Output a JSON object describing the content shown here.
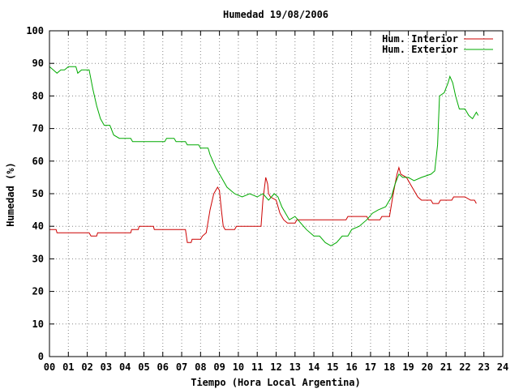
{
  "chart_data": {
    "type": "line",
    "title": "Humedad 19/08/2006",
    "xlabel": "Tiempo (Hora Local Argentina)",
    "ylabel": "Humedad (%)",
    "xlim": [
      0,
      24
    ],
    "ylim": [
      0,
      100
    ],
    "xticks": [
      "00",
      "01",
      "02",
      "03",
      "04",
      "05",
      "06",
      "07",
      "08",
      "09",
      "10",
      "11",
      "12",
      "13",
      "14",
      "15",
      "16",
      "17",
      "18",
      "19",
      "20",
      "21",
      "22",
      "23",
      "24"
    ],
    "yticks": [
      0,
      10,
      20,
      30,
      40,
      50,
      60,
      70,
      80,
      90,
      100
    ],
    "grid": true,
    "legend_position": "top-right",
    "series": [
      {
        "name": "Hum. Interior",
        "color": "#cc0000",
        "points": [
          [
            0.0,
            39
          ],
          [
            0.35,
            39
          ],
          [
            0.4,
            38
          ],
          [
            2.1,
            38
          ],
          [
            2.2,
            37
          ],
          [
            2.5,
            37
          ],
          [
            2.55,
            38
          ],
          [
            4.3,
            38
          ],
          [
            4.35,
            39
          ],
          [
            4.7,
            39
          ],
          [
            4.75,
            40
          ],
          [
            5.5,
            40
          ],
          [
            5.55,
            39
          ],
          [
            7.2,
            39
          ],
          [
            7.3,
            35
          ],
          [
            7.5,
            35
          ],
          [
            7.55,
            36
          ],
          [
            8.0,
            36
          ],
          [
            8.1,
            37
          ],
          [
            8.3,
            38
          ],
          [
            8.5,
            45
          ],
          [
            8.7,
            50
          ],
          [
            8.9,
            52
          ],
          [
            9.0,
            51
          ],
          [
            9.1,
            45
          ],
          [
            9.2,
            40
          ],
          [
            9.3,
            39
          ],
          [
            9.8,
            39
          ],
          [
            9.9,
            40
          ],
          [
            11.2,
            40
          ],
          [
            11.3,
            48
          ],
          [
            11.45,
            55
          ],
          [
            11.55,
            53
          ],
          [
            11.6,
            50
          ],
          [
            11.7,
            49
          ],
          [
            12.0,
            48
          ],
          [
            12.2,
            44
          ],
          [
            12.4,
            42
          ],
          [
            12.6,
            41
          ],
          [
            13.0,
            41
          ],
          [
            13.1,
            42
          ],
          [
            15.7,
            42
          ],
          [
            15.8,
            43
          ],
          [
            16.8,
            43
          ],
          [
            16.9,
            42
          ],
          [
            17.5,
            42
          ],
          [
            17.6,
            43
          ],
          [
            18.0,
            43
          ],
          [
            18.2,
            50
          ],
          [
            18.4,
            56
          ],
          [
            18.5,
            58
          ],
          [
            18.6,
            56
          ],
          [
            18.9,
            55
          ],
          [
            19.2,
            52
          ],
          [
            19.5,
            49
          ],
          [
            19.7,
            48
          ],
          [
            20.2,
            48
          ],
          [
            20.3,
            47
          ],
          [
            20.6,
            47
          ],
          [
            20.7,
            48
          ],
          [
            21.3,
            48
          ],
          [
            21.4,
            49
          ],
          [
            22.0,
            49
          ],
          [
            22.3,
            48
          ],
          [
            22.5,
            48
          ],
          [
            22.6,
            47
          ]
        ]
      },
      {
        "name": "Hum. Exterior",
        "color": "#00aa00",
        "points": [
          [
            0.0,
            89
          ],
          [
            0.2,
            88
          ],
          [
            0.4,
            87
          ],
          [
            0.6,
            88
          ],
          [
            0.8,
            88
          ],
          [
            1.0,
            89
          ],
          [
            1.4,
            89
          ],
          [
            1.5,
            87
          ],
          [
            1.7,
            88
          ],
          [
            2.1,
            88
          ],
          [
            2.3,
            82
          ],
          [
            2.5,
            77
          ],
          [
            2.7,
            73
          ],
          [
            2.9,
            71
          ],
          [
            3.2,
            71
          ],
          [
            3.4,
            68
          ],
          [
            3.7,
            67
          ],
          [
            4.3,
            67
          ],
          [
            4.4,
            66
          ],
          [
            6.1,
            66
          ],
          [
            6.2,
            67
          ],
          [
            6.6,
            67
          ],
          [
            6.7,
            66
          ],
          [
            7.2,
            66
          ],
          [
            7.3,
            65
          ],
          [
            7.9,
            65
          ],
          [
            8.0,
            64
          ],
          [
            8.4,
            64
          ],
          [
            8.5,
            62
          ],
          [
            8.8,
            58
          ],
          [
            9.1,
            55
          ],
          [
            9.4,
            52
          ],
          [
            9.8,
            50
          ],
          [
            10.2,
            49
          ],
          [
            10.6,
            50
          ],
          [
            11.0,
            49
          ],
          [
            11.3,
            50
          ],
          [
            11.6,
            48
          ],
          [
            11.9,
            50
          ],
          [
            12.1,
            49
          ],
          [
            12.3,
            46
          ],
          [
            12.5,
            44
          ],
          [
            12.7,
            42
          ],
          [
            13.0,
            43
          ],
          [
            13.3,
            41
          ],
          [
            13.6,
            39
          ],
          [
            14.0,
            37
          ],
          [
            14.3,
            37
          ],
          [
            14.6,
            35
          ],
          [
            14.9,
            34
          ],
          [
            15.2,
            35
          ],
          [
            15.5,
            37
          ],
          [
            15.8,
            37
          ],
          [
            16.0,
            39
          ],
          [
            16.4,
            40
          ],
          [
            16.8,
            42
          ],
          [
            17.1,
            44
          ],
          [
            17.4,
            45
          ],
          [
            17.8,
            46
          ],
          [
            18.1,
            49
          ],
          [
            18.3,
            53
          ],
          [
            18.5,
            56
          ],
          [
            18.7,
            55
          ],
          [
            19.0,
            55
          ],
          [
            19.3,
            54
          ],
          [
            19.7,
            55
          ],
          [
            20.2,
            56
          ],
          [
            20.4,
            57
          ],
          [
            20.55,
            65
          ],
          [
            20.65,
            80
          ],
          [
            20.9,
            81
          ],
          [
            21.1,
            84
          ],
          [
            21.2,
            86
          ],
          [
            21.35,
            84
          ],
          [
            21.5,
            80
          ],
          [
            21.7,
            76
          ],
          [
            22.0,
            76
          ],
          [
            22.2,
            74
          ],
          [
            22.4,
            73
          ],
          [
            22.6,
            75
          ],
          [
            22.7,
            74
          ]
        ]
      }
    ]
  }
}
